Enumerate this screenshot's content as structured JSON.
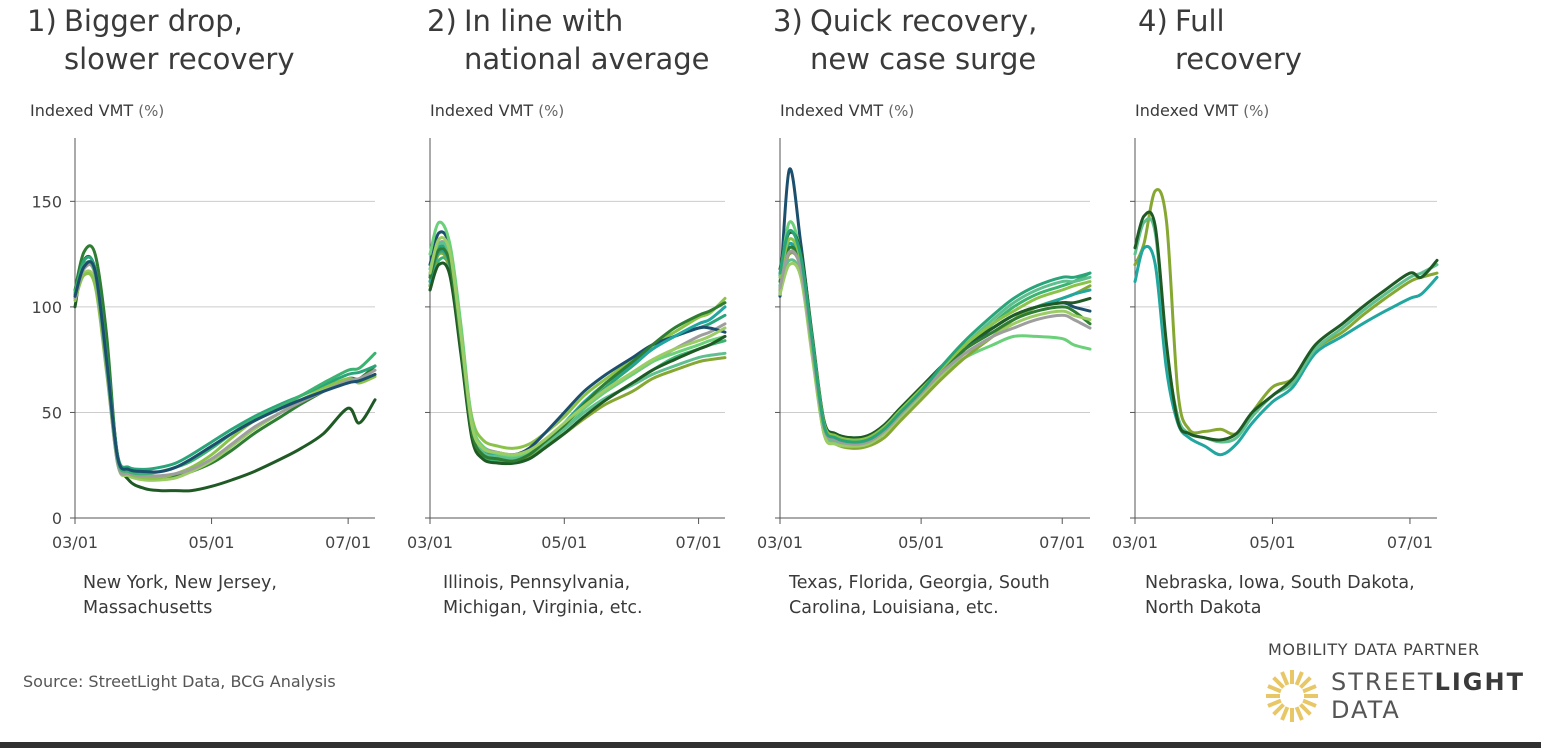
{
  "colors": {
    "grid": "#cccccc",
    "axis": "#555555",
    "line_palette": [
      "#1f5a25",
      "#2e7d32",
      "#9ccc65",
      "#8bc34a",
      "#9e9e9e",
      "#2aa57a",
      "#3cb371",
      "#1c4f6e",
      "#6bd07a",
      "#86a832",
      "#22a6a0",
      "#5fbf8f"
    ],
    "logo": "#e8c766"
  },
  "source": "Source: StreetLight Data, BCG Analysis",
  "partner": {
    "label": "MOBILITY DATA PARTNER",
    "brand_line1_a": "STREET",
    "brand_line1_b": "LIGHT",
    "brand_line2": "DATA",
    "logo_icon": "sunburst-logo-icon"
  },
  "panels": [
    {
      "number": "1)",
      "title_line1": "Bigger drop,",
      "title_line2": "slower recovery",
      "ylabel": "Indexed VMT",
      "ylabel_unit": "(%)",
      "states_line1": "New York, New Jersey,",
      "states_line2": "Massachusetts"
    },
    {
      "number": "2)",
      "title_line1": "In line with",
      "title_line2": "national average",
      "ylabel": "Indexed VMT",
      "ylabel_unit": "(%)",
      "states_line1": "Illinois, Pennsylvania,",
      "states_line2": "Michigan, Virginia, etc."
    },
    {
      "number": "3)",
      "title_line1": "Quick recovery,",
      "title_line2": "new case surge",
      "ylabel": "Indexed VMT",
      "ylabel_unit": "(%)",
      "states_line1": "Texas, Florida, Georgia, South",
      "states_line2": "Carolina, Louisiana, etc."
    },
    {
      "number": "4)",
      "title_line1": "Full",
      "title_line2": "recovery",
      "ylabel": "Indexed VMT",
      "ylabel_unit": "(%)",
      "states_line1": "Nebraska, Iowa, South Dakota,",
      "states_line2": "North Dakota"
    }
  ],
  "chart_data": [
    {
      "type": "line",
      "title": "1) Bigger drop, slower recovery",
      "ylabel": "Indexed VMT (%)",
      "ylim": [
        0,
        180
      ],
      "yticks": [
        0,
        50,
        100,
        150
      ],
      "xlim": [
        "03/01",
        "07/13"
      ],
      "xticks": [
        "03/01",
        "05/01",
        "07/01"
      ],
      "grid": true,
      "x": [
        "03/01",
        "03/05",
        "03/10",
        "03/15",
        "03/20",
        "03/25",
        "04/01",
        "04/08",
        "04/15",
        "04/22",
        "05/01",
        "05/10",
        "05/20",
        "06/01",
        "06/10",
        "06/20",
        "07/01",
        "07/06",
        "07/13"
      ],
      "series": [
        {
          "values": [
            100,
            122,
            118,
            80,
            30,
            18,
            14,
            13,
            13,
            13,
            15,
            18,
            22,
            28,
            33,
            40,
            52,
            45,
            56
          ]
        },
        {
          "values": [
            108,
            126,
            125,
            88,
            28,
            20,
            19,
            19,
            20,
            22,
            26,
            32,
            40,
            48,
            54,
            60,
            66,
            66,
            72
          ]
        },
        {
          "values": [
            105,
            116,
            112,
            75,
            26,
            20,
            18,
            18,
            19,
            22,
            27,
            34,
            42,
            50,
            56,
            61,
            66,
            64,
            68
          ]
        },
        {
          "values": [
            103,
            115,
            110,
            70,
            27,
            21,
            19,
            19,
            21,
            24,
            30,
            38,
            46,
            52,
            58,
            62,
            66,
            64,
            67
          ]
        },
        {
          "values": [
            104,
            118,
            115,
            72,
            26,
            21,
            20,
            20,
            21,
            23,
            28,
            35,
            43,
            50,
            55,
            60,
            65,
            66,
            70
          ]
        },
        {
          "values": [
            106,
            122,
            118,
            78,
            30,
            24,
            23,
            24,
            26,
            30,
            36,
            42,
            48,
            54,
            58,
            63,
            68,
            69,
            72
          ]
        },
        {
          "values": [
            107,
            120,
            116,
            74,
            28,
            22,
            21,
            22,
            24,
            27,
            33,
            40,
            47,
            53,
            58,
            64,
            70,
            71,
            78
          ]
        },
        {
          "values": [
            105,
            119,
            117,
            76,
            29,
            23,
            22,
            22,
            24,
            28,
            34,
            40,
            46,
            52,
            56,
            60,
            64,
            65,
            68
          ]
        }
      ]
    },
    {
      "type": "line",
      "title": "2) In line with national average",
      "ylabel": "Indexed VMT (%)",
      "ylim": [
        0,
        180
      ],
      "yticks": [
        0,
        50,
        100,
        150
      ],
      "xlim": [
        "03/01",
        "07/13"
      ],
      "xticks": [
        "03/01",
        "05/01",
        "07/01"
      ],
      "grid": true,
      "x": [
        "03/01",
        "03/05",
        "03/10",
        "03/15",
        "03/20",
        "03/25",
        "04/01",
        "04/08",
        "04/15",
        "04/22",
        "05/01",
        "05/10",
        "05/20",
        "06/01",
        "06/10",
        "06/20",
        "07/01",
        "07/06",
        "07/13"
      ],
      "series": [
        {
          "values": [
            112,
            125,
            120,
            85,
            48,
            37,
            34,
            33,
            35,
            40,
            48,
            58,
            66,
            75,
            82,
            88,
            95,
            97,
            104
          ]
        },
        {
          "values": [
            115,
            130,
            125,
            90,
            45,
            34,
            31,
            30,
            32,
            37,
            44,
            52,
            60,
            68,
            74,
            80,
            86,
            88,
            92
          ]
        },
        {
          "values": [
            110,
            128,
            122,
            82,
            42,
            30,
            28,
            27,
            29,
            35,
            43,
            52,
            62,
            72,
            80,
            86,
            90,
            92,
            96
          ]
        },
        {
          "values": [
            108,
            122,
            118,
            80,
            40,
            29,
            27,
            26,
            28,
            33,
            40,
            48,
            56,
            64,
            70,
            76,
            80,
            82,
            84
          ]
        },
        {
          "values": [
            120,
            135,
            128,
            88,
            44,
            33,
            31,
            30,
            33,
            40,
            50,
            60,
            68,
            76,
            82,
            86,
            90,
            90,
            88
          ]
        },
        {
          "values": [
            125,
            140,
            130,
            92,
            46,
            34,
            30,
            29,
            31,
            36,
            44,
            52,
            60,
            68,
            74,
            78,
            82,
            84,
            86
          ]
        },
        {
          "values": [
            110,
            125,
            118,
            80,
            40,
            30,
            28,
            27,
            29,
            34,
            40,
            47,
            54,
            60,
            66,
            70,
            74,
            75,
            76
          ]
        },
        {
          "values": [
            112,
            126,
            120,
            84,
            43,
            32,
            29,
            28,
            30,
            36,
            45,
            55,
            64,
            73,
            80,
            86,
            92,
            94,
            100
          ]
        },
        {
          "values": [
            118,
            130,
            124,
            86,
            42,
            31,
            29,
            28,
            30,
            35,
            42,
            50,
            57,
            63,
            68,
            72,
            76,
            77,
            78
          ]
        },
        {
          "values": [
            108,
            120,
            115,
            78,
            38,
            28,
            26,
            26,
            28,
            33,
            40,
            48,
            56,
            64,
            70,
            75,
            80,
            82,
            86
          ]
        },
        {
          "values": [
            114,
            127,
            121,
            83,
            41,
            30,
            28,
            27,
            30,
            36,
            44,
            54,
            64,
            74,
            82,
            90,
            96,
            98,
            102
          ]
        },
        {
          "values": [
            116,
            132,
            126,
            87,
            44,
            33,
            31,
            30,
            32,
            37,
            45,
            53,
            61,
            69,
            75,
            80,
            84,
            86,
            90
          ]
        }
      ]
    },
    {
      "type": "line",
      "title": "3) Quick recovery, new case surge",
      "ylabel": "Indexed VMT (%)",
      "ylim": [
        0,
        180
      ],
      "yticks": [
        0,
        50,
        100,
        150
      ],
      "xlim": [
        "03/01",
        "07/13"
      ],
      "xticks": [
        "03/01",
        "05/01",
        "07/01"
      ],
      "grid": true,
      "x": [
        "03/01",
        "03/05",
        "03/10",
        "03/15",
        "03/20",
        "03/25",
        "04/01",
        "04/08",
        "04/15",
        "04/22",
        "05/01",
        "05/10",
        "05/20",
        "06/01",
        "06/10",
        "06/20",
        "07/01",
        "07/06",
        "07/13"
      ],
      "series": [
        {
          "values": [
            110,
            128,
            118,
            80,
            42,
            36,
            34,
            35,
            40,
            48,
            58,
            68,
            80,
            92,
            100,
            106,
            110,
            112,
            116
          ]
        },
        {
          "values": [
            105,
            165,
            130,
            85,
            45,
            38,
            36,
            38,
            42,
            50,
            60,
            70,
            80,
            90,
            96,
            100,
            102,
            100,
            98
          ]
        },
        {
          "values": [
            112,
            140,
            125,
            82,
            44,
            38,
            36,
            37,
            42,
            50,
            60,
            68,
            76,
            82,
            86,
            86,
            85,
            82,
            80
          ]
        },
        {
          "values": [
            108,
            125,
            118,
            78,
            40,
            35,
            33,
            34,
            38,
            46,
            56,
            66,
            76,
            86,
            94,
            100,
            104,
            106,
            110
          ]
        },
        {
          "values": [
            115,
            130,
            120,
            84,
            46,
            40,
            38,
            39,
            44,
            52,
            62,
            72,
            82,
            90,
            96,
            100,
            104,
            106,
            108
          ]
        },
        {
          "values": [
            110,
            122,
            115,
            78,
            42,
            36,
            34,
            35,
            40,
            48,
            58,
            70,
            82,
            94,
            102,
            108,
            112,
            112,
            114
          ]
        },
        {
          "values": [
            118,
            135,
            126,
            86,
            46,
            40,
            38,
            39,
            44,
            52,
            62,
            72,
            82,
            90,
            96,
            100,
            102,
            102,
            104
          ]
        },
        {
          "values": [
            112,
            128,
            120,
            82,
            44,
            38,
            36,
            37,
            42,
            50,
            60,
            70,
            80,
            88,
            94,
            98,
            100,
            98,
            92
          ]
        },
        {
          "values": [
            106,
            120,
            114,
            76,
            40,
            35,
            34,
            35,
            40,
            48,
            58,
            68,
            78,
            86,
            92,
            96,
            98,
            96,
            94
          ]
        },
        {
          "values": [
            114,
            132,
            122,
            84,
            45,
            39,
            37,
            38,
            43,
            51,
            61,
            71,
            82,
            92,
            98,
            104,
            108,
            110,
            112
          ]
        },
        {
          "values": [
            109,
            126,
            118,
            80,
            43,
            37,
            35,
            36,
            41,
            49,
            59,
            69,
            78,
            86,
            90,
            94,
            96,
            94,
            90
          ]
        },
        {
          "values": [
            116,
            136,
            124,
            84,
            44,
            38,
            36,
            37,
            42,
            50,
            60,
            72,
            84,
            96,
            104,
            110,
            114,
            114,
            116
          ]
        }
      ]
    },
    {
      "type": "line",
      "title": "4) Full recovery",
      "ylabel": "Indexed VMT (%)",
      "ylim": [
        0,
        180
      ],
      "yticks": [
        0,
        50,
        100,
        150
      ],
      "xlim": [
        "03/01",
        "07/13"
      ],
      "xticks": [
        "03/01",
        "05/01",
        "07/01"
      ],
      "grid": true,
      "x": [
        "03/01",
        "03/05",
        "03/10",
        "03/15",
        "03/20",
        "03/25",
        "04/01",
        "04/08",
        "04/15",
        "04/22",
        "05/01",
        "05/10",
        "05/20",
        "06/01",
        "06/10",
        "06/20",
        "07/01",
        "07/06",
        "07/13"
      ],
      "series": [
        {
          "values": [
            120,
            130,
            155,
            140,
            60,
            42,
            41,
            42,
            40,
            50,
            62,
            66,
            80,
            88,
            96,
            104,
            112,
            114,
            116
          ]
        },
        {
          "values": [
            112,
            128,
            120,
            70,
            45,
            38,
            34,
            30,
            35,
            45,
            55,
            62,
            78,
            86,
            92,
            98,
            104,
            106,
            114
          ]
        },
        {
          "values": [
            125,
            140,
            135,
            80,
            48,
            40,
            38,
            36,
            38,
            48,
            58,
            64,
            80,
            90,
            98,
            106,
            114,
            116,
            120
          ]
        },
        {
          "values": [
            128,
            143,
            138,
            82,
            46,
            40,
            38,
            37,
            40,
            50,
            58,
            66,
            82,
            92,
            100,
            108,
            116,
            114,
            122
          ]
        }
      ]
    }
  ]
}
